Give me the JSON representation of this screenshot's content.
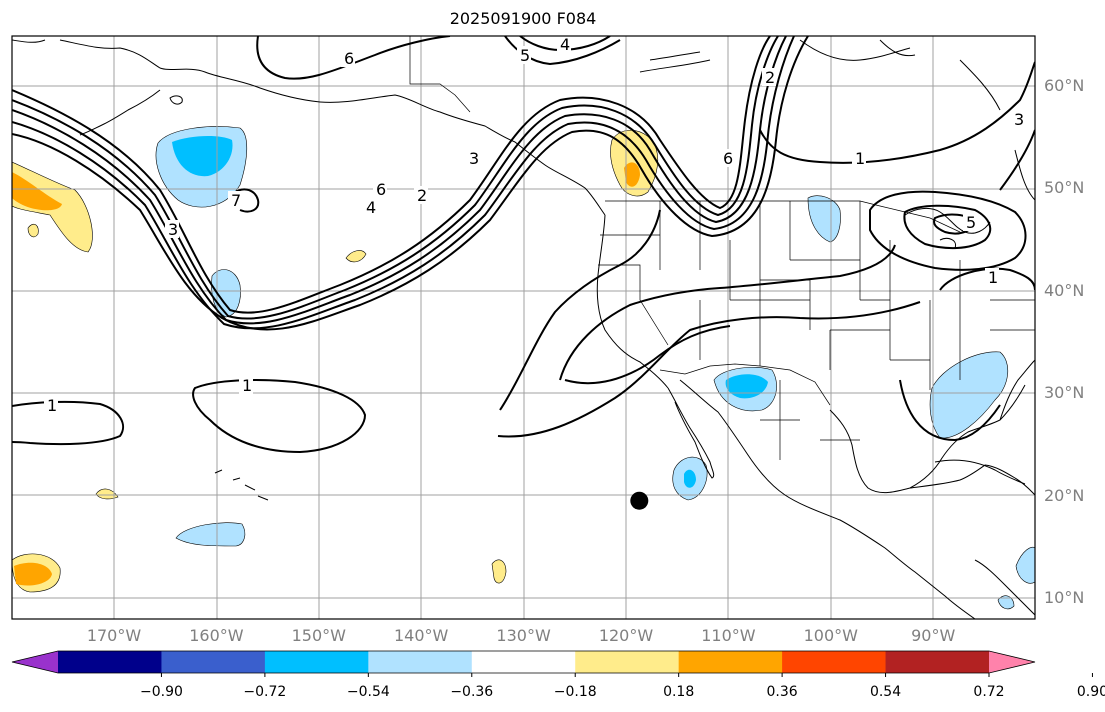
{
  "title": "2025091900 F084",
  "lat_labels": [
    {
      "text": "60°N",
      "lat": 60
    },
    {
      "text": "50°N",
      "lat": 50
    },
    {
      "text": "40°N",
      "lat": 40
    },
    {
      "text": "30°N",
      "lat": 30
    },
    {
      "text": "20°N",
      "lat": 20
    },
    {
      "text": "10°N",
      "lat": 10
    }
  ],
  "lon_labels": [
    {
      "text": "170°W",
      "lon": -170
    },
    {
      "text": "160°W",
      "lon": -160
    },
    {
      "text": "150°W",
      "lon": -150
    },
    {
      "text": "140°W",
      "lon": -140
    },
    {
      "text": "130°W",
      "lon": -130
    },
    {
      "text": "120°W",
      "lon": -120
    },
    {
      "text": "110°W",
      "lon": -110
    },
    {
      "text": "100°W",
      "lon": -100
    },
    {
      "text": "90°W",
      "lon": -90
    }
  ],
  "colorbar": {
    "colors": [
      "#9932cc",
      "#00008b",
      "#3a5fcd",
      "#00bfff",
      "#b0e2ff",
      "#ffffff",
      "#ffec8b",
      "#ffa500",
      "#ff4500",
      "#b22222",
      "#ff82ab"
    ],
    "labels": [
      "−0.90",
      "−0.72",
      "−0.54",
      "−0.36",
      "−0.18",
      "0.18",
      "0.36",
      "0.54",
      "0.72",
      "0.90"
    ]
  },
  "contour_labels": [
    "6",
    "4",
    "5",
    "6",
    "2",
    "1",
    "3",
    "6",
    "2",
    "4",
    "7",
    "3",
    "1",
    "1",
    "1",
    "5",
    "3"
  ],
  "marker": {
    "name": "black dot",
    "lat": 19.5,
    "lon": -118.7
  }
}
